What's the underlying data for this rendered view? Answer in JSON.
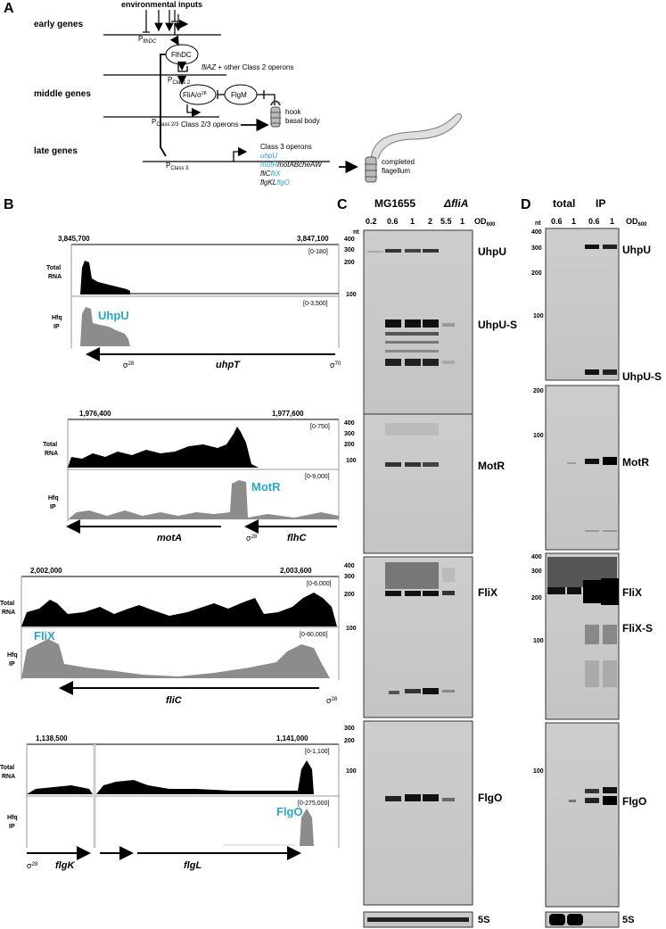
{
  "panels": {
    "A": "A",
    "B": "B",
    "C": "C",
    "D": "D"
  },
  "panelA": {
    "env": "environmental inputs",
    "early": "early genes",
    "middle": "middle genes",
    "late": "late genes",
    "p_flhdc": "P",
    "p_flhdc_sub": "flhDC",
    "p_class2": "P",
    "p_class2_sub": "Class 2",
    "p_class23": "P",
    "p_class23_sub": "Class 2/3",
    "p_class3": "P",
    "p_class3_sub": "Class 3",
    "flhdc": "FlhDC",
    "fliaz_it": "fliAZ",
    "fliaz_rest": " + other Class 2 operons",
    "flia": "FliA/σ",
    "flia_sup": "28",
    "flgm": "FlgM",
    "class23": "Class 2/3 operons",
    "hook1": "hook",
    "hook2": "basal body",
    "class3": "Class 3 operons",
    "l1": "uhpU",
    "l2a": "motR",
    "l2b": "motABcheAW",
    "l3a": "fliC",
    "l3b": "fliX",
    "l4a": "flgKL",
    "l4b": "flgO",
    "comp1": "completed",
    "comp2": "flagellum"
  },
  "panelB": [
    {
      "c1": "3,845,700",
      "c2": "3,847,100",
      "r1": "[0-180]",
      "r2": "[0-3,500]",
      "srna": "UhpU",
      "g1": "uhpT",
      "g2": "",
      "s1": "σ",
      "s1n": "28",
      "s2": "σ",
      "s2n": "70"
    },
    {
      "c1": "1,976,400",
      "c2": "1,977,600",
      "r1": "[0-750]",
      "r2": "[0-9,000]",
      "srna": "MotR",
      "g1": "motA",
      "g2": "flhC",
      "s1": "σ",
      "s1n": "28"
    },
    {
      "c1": "2,002,000",
      "c2": "2,003,600",
      "r1": "[0-6,000]",
      "r2": "[0-60,000]",
      "srna": "FliX",
      "g1": "fliC",
      "s1": "σ",
      "s1n": "28"
    },
    {
      "c1": "1,138,500",
      "c2": "1,141,000",
      "r1": "[0-1,100]",
      "r2": "[0-275,000]",
      "srna": "FlgO",
      "g1": "flgK",
      "g2": "flgL",
      "s1": "σ",
      "s1n": "28"
    }
  ],
  "track_labels": {
    "total1": "Total",
    "total2": "RNA",
    "hfq1": "Hfq",
    "hfq2": "IP"
  },
  "panelC": {
    "strain1": "MG1655",
    "strain2_delta": "Δ",
    "strain2": "fliA",
    "od": [
      "0.2",
      "0.6",
      "1",
      "2",
      "5.5",
      "1"
    ],
    "od_label": "OD",
    "od_sub": "600",
    "nt": "nt",
    "ladder1": [
      "400",
      "300",
      "200",
      "100"
    ],
    "ladder2": [
      "400",
      "300",
      "200",
      "100"
    ],
    "ladder3": [
      "400",
      "300",
      "200",
      "100"
    ],
    "ladder4": [
      "300",
      "200",
      "100"
    ],
    "bands": [
      "UhpU",
      "UhpU-S",
      "MotR",
      "FliX",
      "FlgO",
      "5S"
    ]
  },
  "panelD": {
    "total": "total",
    "ip": "IP",
    "od": [
      "0.6",
      "1",
      "0.6",
      "1"
    ],
    "od_label": "OD",
    "od_sub": "600",
    "nt": "nt",
    "ladder1": [
      "400",
      "300",
      "200",
      "100"
    ],
    "ladder2": [
      "200",
      "100"
    ],
    "ladder3": [
      "400",
      "300",
      "200",
      "100"
    ],
    "ladder4": [
      "100"
    ],
    "bands": [
      "UhpU",
      "UhpU-S",
      "MotR",
      "FliX",
      "FliX-S",
      "FlgO",
      "5S"
    ]
  },
  "colors": {
    "srna": "#2aa7c9",
    "total_track": "#000000",
    "ip_track": "#8c8c8c",
    "gel": "#c9c9c9"
  }
}
